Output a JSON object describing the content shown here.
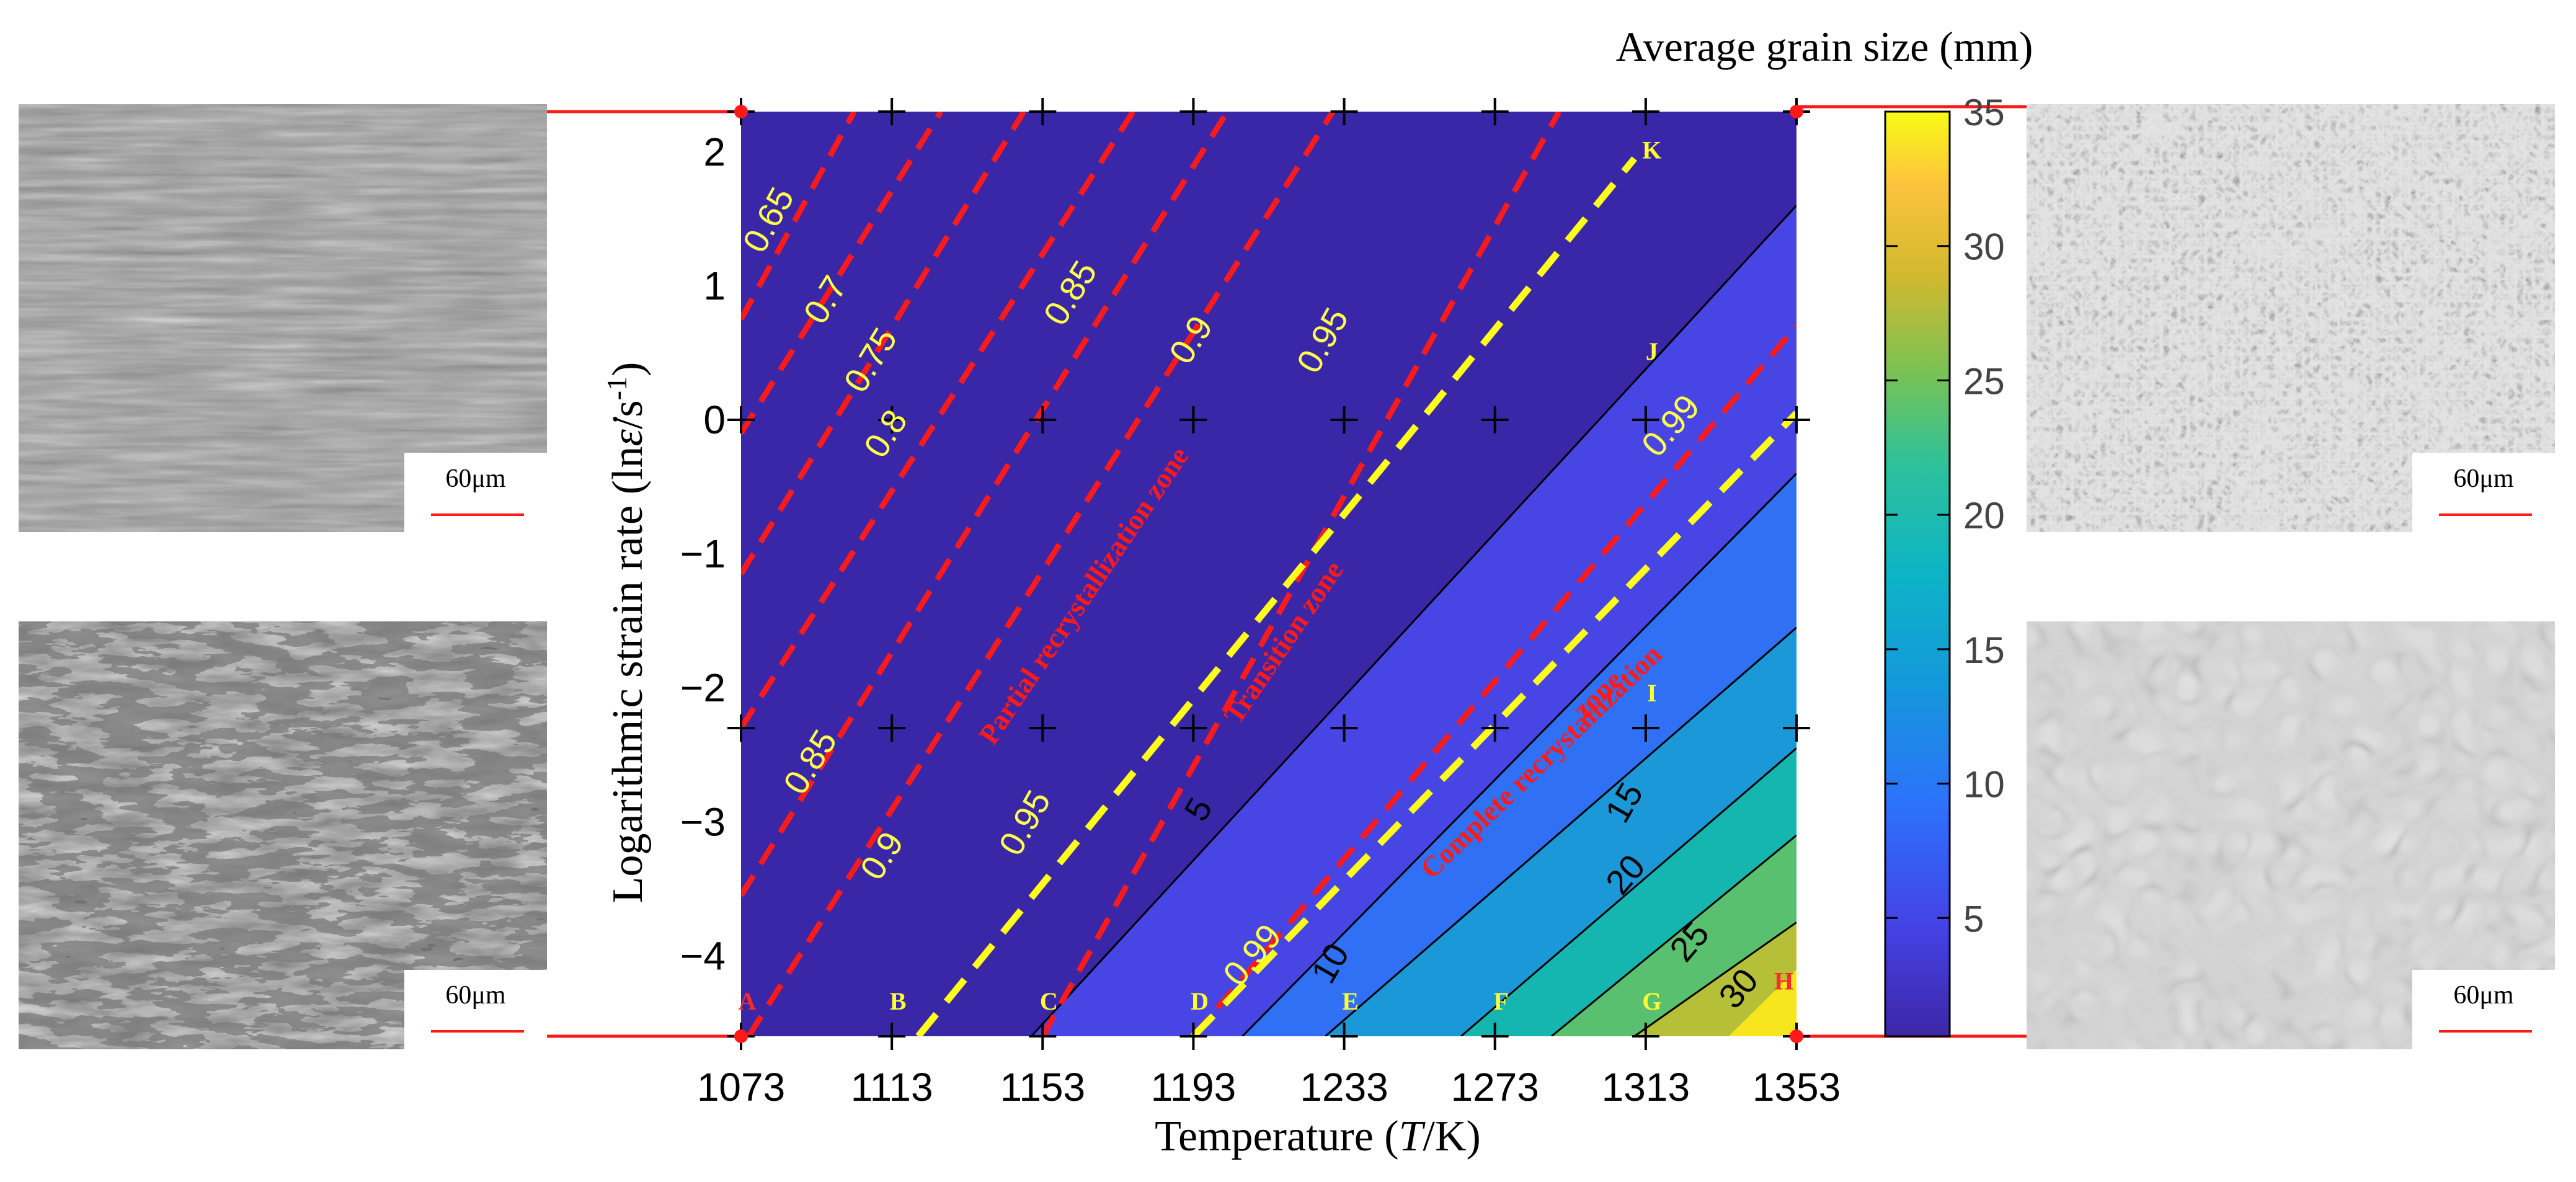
{
  "chart_data": {
    "type": "contour",
    "colorbar_title": "Average grain size (mm)",
    "xlabel": "Temperature (T/K)",
    "xlabel_parts": [
      "Temperature (",
      "T",
      "/K)"
    ],
    "ylabel": "Logarithmic  strain rate (lnε̇/s⁻¹)",
    "ylabel_parts": [
      "Logarithmic  strain rate (ln",
      "ε̇",
      "/s",
      "-1",
      ")"
    ],
    "xlim": [
      1073,
      1353
    ],
    "ylim": [
      -4.6,
      2.3
    ],
    "x_ticks": [
      1073,
      1113,
      1153,
      1193,
      1233,
      1273,
      1313,
      1353
    ],
    "x_tick_labels": [
      "1073",
      "1113",
      "1153",
      "1193",
      "1233",
      "1273",
      "1313",
      "1353"
    ],
    "y_ticks": [
      2,
      1,
      0,
      -1,
      -2,
      -3,
      -4
    ],
    "y_tick_labels": [
      "2",
      "1",
      "0",
      "−1",
      "−2",
      "−3",
      "−4"
    ],
    "colorbar_range": [
      0.6,
      35
    ],
    "colorbar_ticks": [
      5,
      10,
      15,
      20,
      25,
      30,
      35
    ],
    "colorbar_tick_labels": [
      "5",
      "10",
      "15",
      "20",
      "25",
      "30",
      "35"
    ],
    "grain_size_contours": [
      {
        "level": 5,
        "from": [
          1150,
          -4.6
        ],
        "to": [
          1353,
          1.6
        ],
        "label": "5",
        "label_at": [
          1197,
          -2.95
        ],
        "label_rotation": -60
      },
      {
        "level": 10,
        "from": [
          1206,
          -4.6
        ],
        "to": [
          1353,
          -0.4
        ],
        "label": "10",
        "label_at": [
          1232,
          -4.1
        ],
        "label_rotation": -60
      },
      {
        "level": 15,
        "from": [
          1228,
          -4.6
        ],
        "to": [
          1353,
          -1.55
        ],
        "label": "15",
        "label_at": [
          1310,
          -2.9
        ],
        "label_rotation": -60
      },
      {
        "level": 20,
        "from": [
          1264,
          -4.6
        ],
        "to": [
          1353,
          -2.45
        ],
        "label": "20",
        "label_at": [
          1310,
          -3.45
        ],
        "label_rotation": -50
      },
      {
        "level": 25,
        "from": [
          1288,
          -4.6
        ],
        "to": [
          1353,
          -3.1
        ],
        "label": "25",
        "label_at": [
          1327,
          -3.95
        ],
        "label_rotation": -50
      },
      {
        "level": 30,
        "from": [
          1310,
          -4.6
        ],
        "to": [
          1353,
          -3.75
        ],
        "label": "30",
        "label_at": [
          1340,
          -4.3
        ],
        "label_rotation": -50
      }
    ],
    "recrystallization_contours_red": [
      {
        "level": 0.65,
        "from": [
          1073,
          0.75
        ],
        "to": [
          1103,
          2.3
        ],
        "label": "0.65",
        "label_at": [
          1083,
          1.45
        ]
      },
      {
        "level": 0.7,
        "from": [
          1073,
          -0.1
        ],
        "to": [
          1126,
          2.3
        ],
        "label": "0.7",
        "label_at": [
          1098,
          0.85
        ]
      },
      {
        "level": 0.75,
        "from": [
          1073,
          -1.15
        ],
        "to": [
          1148,
          2.3
        ],
        "label": "0.75",
        "label_at": [
          1110,
          0.4
        ]
      },
      {
        "level": 0.8,
        "from": [
          1073,
          -2.3
        ],
        "to": [
          1177,
          2.3
        ],
        "label": "0.8",
        "label_at": [
          1114,
          -0.15
        ]
      },
      {
        "level": 0.85,
        "from": [
          1073,
          -3.55
        ],
        "to": [
          1202,
          2.3
        ],
        "label": "0.85",
        "label_at": [
          1163,
          0.9
        ]
      },
      {
        "level": 0.85,
        "from": [
          1073,
          -3.55
        ],
        "to": [
          1202,
          2.3
        ],
        "label": "0.85",
        "label_at": [
          1094,
          -2.6
        ]
      },
      {
        "level": 0.9,
        "from": [
          1075,
          -4.6
        ],
        "to": [
          1230,
          2.3
        ],
        "label": "0.9",
        "label_at": [
          1195,
          0.55
        ]
      },
      {
        "level": 0.9,
        "from": [
          1075,
          -4.6
        ],
        "to": [
          1230,
          2.3
        ],
        "label": "0.9",
        "label_at": [
          1113,
          -3.3
        ]
      },
      {
        "level": 0.95,
        "from": [
          1153,
          -4.6
        ],
        "to": [
          1290,
          2.3
        ],
        "label": "0.95",
        "label_at": [
          1230,
          0.55
        ]
      },
      {
        "level": 0.95,
        "from": [
          1153,
          -4.6
        ],
        "to": [
          1290,
          2.3
        ],
        "label": "0.95",
        "label_at": [
          1151,
          -3.05
        ]
      },
      {
        "level": 0.99,
        "from": [
          1193,
          -4.6
        ],
        "to": [
          1353,
          0.7
        ],
        "label": "0.99",
        "label_at": [
          1322,
          -0.1
        ]
      },
      {
        "level": 0.99,
        "from": [
          1193,
          -4.6
        ],
        "to": [
          1353,
          0.7
        ],
        "label": "0.99",
        "label_at": [
          1211,
          -4.05
        ]
      }
    ],
    "boundary_lines_yellow": [
      {
        "from": [
          1120,
          -4.6
        ],
        "to": [
          1310,
          1.95
        ]
      },
      {
        "from": [
          1193,
          -4.6
        ],
        "to": [
          1353,
          0.05
        ]
      }
    ],
    "zone_labels": [
      {
        "text": "Partial recrystallization zone",
        "at": [
          1166,
          -1.35
        ],
        "rotation": -56
      },
      {
        "text": "Transition zone",
        "at": [
          1219,
          -1.7
        ],
        "rotation": -56
      },
      {
        "text": "Complete recrystallization",
        "at": [
          1287,
          -2.6
        ],
        "rotation": -44
      },
      {
        "text": "zone",
        "at": [
          1302,
          -2.1
        ],
        "rotation": -44
      }
    ],
    "grid_points": [
      {
        "x": 1073,
        "y": 2.3
      },
      {
        "x": 1113,
        "y": 2.3
      },
      {
        "x": 1153,
        "y": 2.3
      },
      {
        "x": 1193,
        "y": 2.3
      },
      {
        "x": 1233,
        "y": 2.3
      },
      {
        "x": 1273,
        "y": 2.3
      },
      {
        "x": 1313,
        "y": 2.3
      },
      {
        "x": 1353,
        "y": 2.3
      },
      {
        "x": 1073,
        "y": 0
      },
      {
        "x": 1113,
        "y": 0
      },
      {
        "x": 1153,
        "y": 0
      },
      {
        "x": 1193,
        "y": 0
      },
      {
        "x": 1233,
        "y": 0
      },
      {
        "x": 1273,
        "y": 0
      },
      {
        "x": 1313,
        "y": 0
      },
      {
        "x": 1353,
        "y": 0
      },
      {
        "x": 1073,
        "y": -2.3
      },
      {
        "x": 1113,
        "y": -2.3
      },
      {
        "x": 1153,
        "y": -2.3
      },
      {
        "x": 1193,
        "y": -2.3
      },
      {
        "x": 1233,
        "y": -2.3
      },
      {
        "x": 1273,
        "y": -2.3
      },
      {
        "x": 1313,
        "y": -2.3
      },
      {
        "x": 1353,
        "y": -2.3
      },
      {
        "x": 1073,
        "y": -4.6
      },
      {
        "x": 1113,
        "y": -4.6
      },
      {
        "x": 1153,
        "y": -4.6
      },
      {
        "x": 1193,
        "y": -4.6
      },
      {
        "x": 1233,
        "y": -4.6
      },
      {
        "x": 1273,
        "y": -4.6
      },
      {
        "x": 1313,
        "y": -4.6
      },
      {
        "x": 1353,
        "y": -4.6
      }
    ],
    "point_labels": [
      {
        "text": "A",
        "x": 1073,
        "y": -4.4,
        "color": "#ff2a2a"
      },
      {
        "text": "B",
        "x": 1113,
        "y": -4.4,
        "color": "#ffff33"
      },
      {
        "text": "C",
        "x": 1153,
        "y": -4.4,
        "color": "#ffff33"
      },
      {
        "text": "D",
        "x": 1193,
        "y": -4.4,
        "color": "#ffff33"
      },
      {
        "text": "E",
        "x": 1233,
        "y": -4.4,
        "color": "#ffff33"
      },
      {
        "text": "F",
        "x": 1273,
        "y": -4.4,
        "color": "#ffff33"
      },
      {
        "text": "G",
        "x": 1313,
        "y": -4.4,
        "color": "#ffff33"
      },
      {
        "text": "H",
        "x": 1348,
        "y": -4.25,
        "color": "#ff2a2a"
      },
      {
        "text": "I",
        "x": 1313,
        "y": -2.1,
        "color": "#ffff33"
      },
      {
        "text": "J",
        "x": 1313,
        "y": 0.45,
        "color": "#ffff33"
      },
      {
        "text": "K",
        "x": 1313,
        "y": 1.95,
        "color": "#ffff33"
      }
    ],
    "corner_markers": [
      {
        "x": 1073,
        "y": 2.3
      },
      {
        "x": 1073,
        "y": -4.6
      },
      {
        "x": 1353,
        "y": 2.3
      },
      {
        "x": 1353,
        "y": -4.6
      }
    ]
  },
  "micrographs": [
    {
      "position": "top-left",
      "scale_label": "60μm",
      "tone": "elongated"
    },
    {
      "position": "bottom-left",
      "scale_label": "60μm",
      "tone": "mixed"
    },
    {
      "position": "top-right",
      "scale_label": "60μm",
      "tone": "fine"
    },
    {
      "position": "bottom-right",
      "scale_label": "60μm",
      "tone": "coarse"
    }
  ],
  "colors": {
    "background": "#3a27a8",
    "red_lines": "#ff1a1a",
    "yellow_lines": "#ffff1a",
    "contour_labels": "#ffff4d"
  }
}
